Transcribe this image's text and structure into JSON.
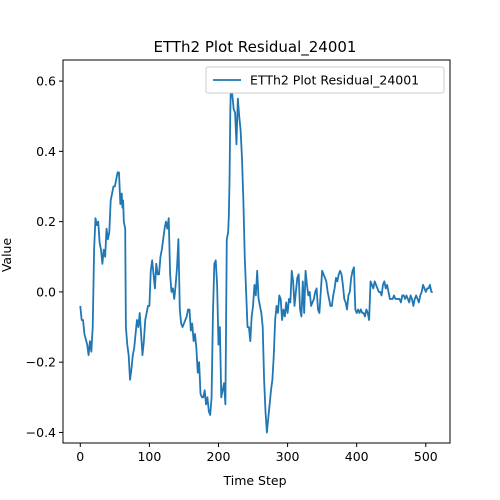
{
  "chart_data": {
    "type": "line",
    "title": "ETTh2 Plot Residual_24001",
    "xlabel": "Time Step",
    "ylabel": "Value",
    "xlim": [
      -25,
      535
    ],
    "ylim": [
      -0.43,
      0.66
    ],
    "x_ticks": [
      0,
      100,
      200,
      300,
      400,
      500
    ],
    "y_ticks": [
      -0.4,
      -0.2,
      0.0,
      0.2,
      0.4,
      0.6
    ],
    "y_tick_labels": [
      "−0.4",
      "−0.2",
      "0.0",
      "0.2",
      "0.4",
      "0.6"
    ],
    "grid": false,
    "legend_position": "top-right",
    "series": [
      {
        "name": "ETTh2 Plot Residual_24001",
        "color": "#1f77b4",
        "x": [
          0,
          2,
          4,
          6,
          10,
          12,
          14,
          16,
          18,
          20,
          22,
          24,
          26,
          28,
          30,
          32,
          34,
          36,
          38,
          40,
          42,
          44,
          46,
          48,
          50,
          52,
          54,
          56,
          58,
          60,
          61,
          62,
          63,
          65,
          66,
          68,
          70,
          72,
          74,
          76,
          78,
          80,
          82,
          84,
          86,
          88,
          90,
          92,
          94,
          96,
          98,
          100,
          102,
          104,
          106,
          108,
          110,
          112,
          114,
          116,
          118,
          120,
          122,
          124,
          126,
          128,
          130,
          132,
          134,
          136,
          138,
          140,
          142,
          144,
          146,
          148,
          150,
          152,
          154,
          156,
          158,
          160,
          162,
          164,
          166,
          168,
          170,
          172,
          174,
          176,
          178,
          180,
          182,
          184,
          186,
          188,
          190,
          192,
          194,
          196,
          198,
          200,
          202,
          204,
          206,
          208,
          210,
          212,
          214,
          215,
          216,
          217,
          218,
          220,
          222,
          224,
          226,
          228,
          230,
          232,
          234,
          236,
          238,
          240,
          242,
          244,
          246,
          248,
          250,
          252,
          254,
          256,
          258,
          260,
          262,
          264,
          266,
          268,
          270,
          272,
          274,
          276,
          278,
          280,
          282,
          284,
          286,
          288,
          290,
          292,
          294,
          296,
          298,
          300,
          302,
          304,
          306,
          308,
          310,
          312,
          314,
          316,
          318,
          320,
          322,
          324,
          326,
          328,
          330,
          332,
          334,
          336,
          338,
          340,
          342,
          344,
          346,
          348,
          350,
          352,
          354,
          356,
          358,
          360,
          362,
          364,
          366,
          368,
          370,
          372,
          374,
          376,
          378,
          380,
          382,
          384,
          386,
          388,
          390,
          392,
          394,
          396,
          398,
          400,
          402,
          404,
          406,
          408,
          410,
          412,
          414,
          416,
          418,
          420,
          422,
          424,
          426,
          428,
          430,
          432,
          434,
          436,
          438,
          440,
          442,
          444,
          446,
          448,
          450,
          452,
          454,
          456,
          458,
          460,
          462,
          464,
          466,
          468,
          470,
          472,
          474,
          476,
          478,
          480,
          482,
          484,
          486,
          488,
          490,
          492,
          494,
          496,
          498,
          500,
          502,
          504,
          506,
          508,
          510
        ],
        "values": [
          -0.04,
          -0.08,
          -0.08,
          -0.12,
          -0.15,
          -0.18,
          -0.14,
          -0.17,
          -0.1,
          0.12,
          0.21,
          0.19,
          0.2,
          0.14,
          0.12,
          0.08,
          0.12,
          0.1,
          0.18,
          0.15,
          0.17,
          0.26,
          0.28,
          0.3,
          0.3,
          0.32,
          0.34,
          0.34,
          0.25,
          0.28,
          0.24,
          0.26,
          0.2,
          0.18,
          -0.1,
          -0.15,
          -0.18,
          -0.25,
          -0.22,
          -0.18,
          -0.16,
          -0.12,
          -0.08,
          -0.1,
          -0.06,
          -0.12,
          -0.18,
          -0.14,
          -0.08,
          -0.06,
          -0.04,
          -0.04,
          0.06,
          0.09,
          0.05,
          0.01,
          0.08,
          0.05,
          0.05,
          0.1,
          0.12,
          0.15,
          0.18,
          0.2,
          0.18,
          0.21,
          0.05,
          0.0,
          0.01,
          -0.02,
          0.02,
          0.07,
          0.15,
          -0.05,
          -0.09,
          -0.1,
          -0.09,
          -0.08,
          -0.07,
          -0.05,
          -0.05,
          -0.11,
          -0.09,
          -0.14,
          -0.12,
          -0.16,
          -0.23,
          -0.2,
          -0.29,
          -0.3,
          -0.3,
          -0.28,
          -0.32,
          -0.3,
          -0.34,
          -0.35,
          -0.3,
          -0.06,
          0.08,
          0.09,
          0.02,
          -0.15,
          -0.1,
          -0.3,
          -0.28,
          -0.26,
          -0.32,
          0.15,
          0.17,
          0.22,
          0.32,
          0.5,
          0.6,
          0.56,
          0.52,
          0.51,
          0.42,
          0.55,
          0.5,
          0.46,
          0.38,
          0.26,
          0.1,
          0.0,
          -0.1,
          -0.1,
          -0.14,
          -0.07,
          -0.04,
          0.02,
          -0.01,
          0.06,
          -0.02,
          -0.04,
          -0.06,
          -0.1,
          -0.25,
          -0.34,
          -0.4,
          -0.36,
          -0.32,
          -0.28,
          -0.25,
          -0.18,
          -0.08,
          -0.04,
          -0.06,
          -0.01,
          -0.02,
          -0.08,
          -0.05,
          -0.07,
          -0.03,
          -0.06,
          -0.02,
          -0.03,
          0.06,
          0.03,
          -0.04,
          0.0,
          0.04,
          0.05,
          -0.05,
          -0.07,
          0.03,
          -0.06,
          0.06,
          0.02,
          -0.01,
          0.0,
          -0.04,
          -0.03,
          -0.02,
          0.0,
          0.01,
          -0.05,
          -0.06,
          0.0,
          0.06,
          0.05,
          0.04,
          0.03,
          0.0,
          -0.02,
          -0.04,
          -0.04,
          -0.01,
          0.01,
          0.04,
          0.03,
          0.05,
          0.06,
          0.05,
          0.02,
          -0.02,
          -0.03,
          -0.05,
          -0.01,
          0.0,
          0.04,
          0.06,
          0.07,
          -0.05,
          -0.06,
          -0.05,
          -0.06,
          -0.05,
          -0.06,
          -0.06,
          -0.07,
          -0.05,
          -0.06,
          -0.08,
          0.03,
          0.02,
          0.01,
          0.03,
          0.02,
          0.01,
          0.0,
          0.0,
          -0.01,
          0.02,
          0.03,
          0.01,
          0.02,
          0.0,
          -0.02,
          -0.02,
          -0.02,
          -0.01,
          -0.02,
          -0.02,
          -0.02,
          -0.02,
          -0.03,
          -0.01,
          -0.01,
          -0.02,
          -0.01,
          -0.02,
          -0.03,
          -0.01,
          -0.02,
          -0.04,
          -0.02,
          -0.01,
          -0.02,
          -0.03,
          -0.01,
          0.0,
          0.02,
          0.01,
          0.0,
          0.01,
          0.01,
          0.02,
          0.0,
          0.0
        ]
      }
    ]
  }
}
